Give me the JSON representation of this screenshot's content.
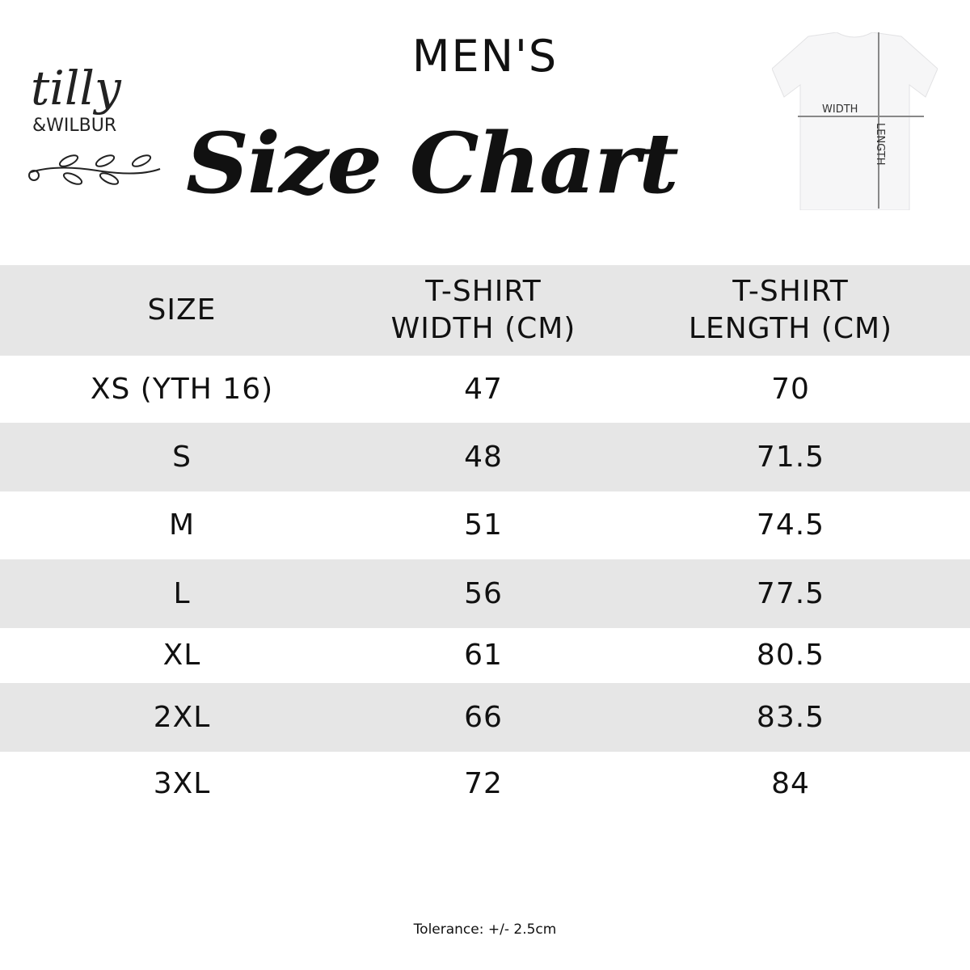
{
  "brand": {
    "logo_text": "tilly & WILBUR"
  },
  "header": {
    "subtitle": "MEN'S",
    "title": "Size Chart"
  },
  "diagram": {
    "width_label": "WIDTH",
    "length_label": "LENGTH"
  },
  "table": {
    "headers": [
      [
        "SIZE"
      ],
      [
        "T-SHIRT",
        "WIDTH (CM)"
      ],
      [
        "T-SHIRT",
        "LENGTH (CM)"
      ]
    ],
    "rows": [
      [
        "XS (YTH 16)",
        "47",
        "70"
      ],
      [
        "S",
        "48",
        "71.5"
      ],
      [
        "M",
        "51",
        "74.5"
      ],
      [
        "L",
        "56",
        "77.5"
      ],
      [
        "XL",
        "61",
        "80.5"
      ],
      [
        "2XL",
        "66",
        "83.5"
      ],
      [
        "3XL",
        "72",
        "84"
      ]
    ]
  },
  "footer": {
    "tolerance": "Tolerance: +/- 2.5cm"
  },
  "colors": {
    "band": "#e6e6e6",
    "text": "#111111"
  }
}
